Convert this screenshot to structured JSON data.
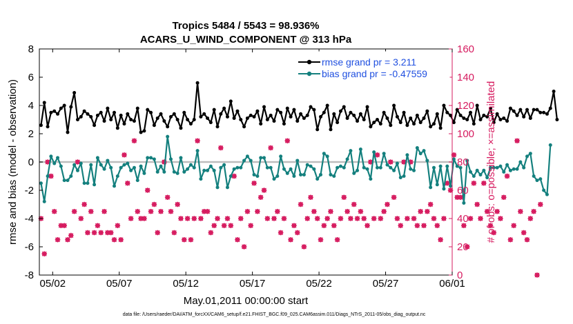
{
  "chart_data": {
    "type": "line",
    "title": "Tropics 5484 / 5543 = 98.936%",
    "subtitle": "ACARS_U_WIND_COMPONENT @ 313 hPa",
    "xlabel": "May.01,2011 00:00:00 start",
    "ylabel_left": "rmse and bias (model - observation)",
    "ylabel_right": "# of obs: o=possible; ×=assimilated",
    "footer": "data file: /Users/raeder/DAI/ATM_forcXX/CAM6_setup/f.e21.FHIST_BGC.f09_025.CAM6assim.011/Diags_NTrS_2011-05/obs_diag_output.nc",
    "x_range": [
      0,
      31
    ],
    "x_ticks": [
      1,
      6,
      11,
      16,
      21,
      26,
      31
    ],
    "x_tick_labels": [
      "05/02",
      "05/07",
      "05/12",
      "05/17",
      "05/22",
      "05/27",
      "06/01"
    ],
    "ylim_left": [
      -8,
      8
    ],
    "yticks_left": [
      "-8",
      "-6",
      "-4",
      "-2",
      "0",
      "2",
      "4",
      "6",
      "8"
    ],
    "ylim_right": [
      0,
      160
    ],
    "yticks_right": [
      "0",
      "20",
      "40",
      "60",
      "80",
      "100",
      "120",
      "140",
      "160"
    ],
    "zero_line": 0,
    "time_step_days": 0.25,
    "series": [
      {
        "name": "rmse grand pr = 3.211",
        "axis": "left",
        "color": "#000000",
        "marker": "dot",
        "values": [
          2.6,
          4.2,
          2.5,
          3.5,
          3.6,
          3.4,
          3.8,
          4.0,
          2.1,
          3.9,
          4.9,
          3.0,
          3.2,
          3.6,
          3.4,
          3.2,
          2.6,
          3.3,
          3.5,
          2.9,
          3.8,
          3.0,
          3.5,
          2.4,
          3.3,
          2.7,
          3.4,
          3.0,
          2.9,
          3.8,
          2.1,
          2.2,
          3.7,
          3.5,
          2.6,
          3.1,
          3.4,
          2.9,
          2.5,
          3.2,
          3.4,
          3.0,
          2.4,
          3.5,
          3.0,
          2.7,
          3.0,
          5.6,
          3.2,
          3.4,
          3.1,
          2.8,
          3.7,
          2.5,
          3.4,
          3.8,
          3.2,
          4.3,
          3.1,
          3.6,
          3.0,
          2.5,
          3.1,
          3.3,
          3.2,
          3.6,
          2.7,
          3.9,
          3.0,
          3.3,
          2.9,
          3.7,
          3.5,
          2.7,
          3.8,
          3.2,
          3.7,
          2.9,
          3.4,
          3.1,
          3.3,
          3.9,
          3.7,
          2.3,
          3.2,
          3.5,
          4.0,
          2.3,
          3.4,
          2.8,
          3.6,
          3.9,
          3.1,
          3.5,
          3.3,
          2.9,
          3.4,
          3.0,
          3.9,
          2.5,
          2.8,
          3.0,
          2.7,
          3.5,
          3.1,
          2.6,
          4.0,
          3.2,
          2.8,
          3.5,
          2.6,
          3.1,
          2.7,
          3.3,
          2.8,
          3.1,
          3.6,
          2.5,
          2.7,
          3.4,
          2.4,
          4.0,
          3.5,
          3.3,
          2.8,
          3.7,
          3.3,
          3.1,
          3.0,
          3.5,
          2.7,
          4.0,
          3.0,
          3.3,
          3.2,
          3.8,
          2.8,
          3.4,
          3.0,
          3.1,
          2.9,
          3.8,
          3.6,
          3.3,
          3.7,
          3.2,
          3.7,
          3.1,
          3.7,
          3.7,
          3.5,
          3.5,
          3.4,
          3.8,
          5.0,
          3.0
        ]
      },
      {
        "name": "bias grand pr = -0.47559",
        "axis": "left",
        "color": "#14807e",
        "marker": "dot",
        "values": [
          -1.5,
          -2.8,
          -1.0,
          0.4,
          -0.1,
          0.3,
          -0.3,
          -1.3,
          -1.3,
          -1.0,
          -0.2,
          -0.6,
          -0.1,
          -1.5,
          -1.5,
          -0.2,
          -1.6,
          0.3,
          -0.2,
          -0.5,
          0.1,
          -0.4,
          -1.7,
          -1.0,
          -0.4,
          -0.2,
          -0.1,
          -0.6,
          -0.4,
          -1.3,
          -0.3,
          -0.8,
          0.3,
          0.3,
          0.2,
          -0.7,
          -0.3,
          -0.7,
          1.8,
          0.2,
          -0.7,
          -0.8,
          0.3,
          -0.7,
          -0.5,
          -0.2,
          -0.4,
          0.8,
          -1.2,
          -0.6,
          -0.6,
          -0.3,
          -0.6,
          -1.8,
          -0.4,
          -0.2,
          -1.8,
          -1.0,
          -0.5,
          -0.4,
          -0.4,
          0.1,
          0.4,
          0.1,
          -0.9,
          -1.0,
          0.3,
          0.3,
          -0.4,
          -0.4,
          -1.2,
          -1.0,
          0.4,
          -0.5,
          -0.8,
          -0.5,
          -1.0,
          0.1,
          -0.9,
          -0.9,
          -0.2,
          -0.3,
          -0.5,
          -1.2,
          -0.9,
          0.6,
          0.4,
          -0.9,
          -1.0,
          -0.4,
          -0.3,
          -0.4,
          0.2,
          0.8,
          -0.8,
          -0.6,
          0.9,
          -0.4,
          -0.5,
          -1.2,
          0.7,
          -0.4,
          -0.4,
          0.6,
          -0.2,
          -0.4,
          -0.6,
          -0.1,
          -1.1,
          -1.0,
          0.5,
          -0.5,
          -0.6,
          1.0,
          0.6,
          0.8,
          0.1,
          -1.8,
          -0.4,
          -1.6,
          -0.3,
          -1.9,
          -0.3,
          -1.7,
          0.2,
          -0.3,
          -0.4,
          -2.9,
          0.1,
          -0.7,
          -1.0,
          -0.6,
          -0.9,
          -0.6,
          -1.1,
          -0.4,
          -0.4,
          -0.4,
          -0.3,
          -0.7,
          -0.2,
          -0.6,
          -0.5,
          -0.5,
          0.0,
          -0.4,
          0.4,
          0.6,
          -1.0,
          -1.3,
          -1.2,
          -2.0,
          -2.3,
          1.2
        ]
      },
      {
        "name": "# obs possible",
        "axis": "right",
        "color": "#d61b5f",
        "marker": "circle",
        "values": [
          40,
          15,
          80,
          70,
          45,
          25,
          35,
          35,
          25,
          28,
          45,
          80,
          40,
          50,
          30,
          45,
          30,
          35,
          30,
          45,
          30,
          30,
          25,
          35,
          25,
          85,
          65,
          40,
          95,
          45,
          40,
          40,
          60,
          45,
          50,
          30,
          45,
          80,
          55,
          45,
          30,
          50,
          40,
          25,
          40,
          25,
          40,
          95,
          40,
          45,
          45,
          30,
          35,
          40,
          90,
          35,
          40,
          35,
          70,
          25,
          40,
          20,
          45,
          35,
          65,
          45,
          55,
          60,
          40,
          90,
          40,
          45,
          30,
          40,
          95,
          25,
          35,
          30,
          50,
          20,
          40,
          55,
          45,
          40,
          25,
          35,
          40,
          45,
          35,
          25,
          40,
          55,
          45,
          40,
          50,
          40,
          45,
          40,
          35,
          80,
          40,
          85,
          40,
          45,
          50,
          80,
          55,
          40,
          35,
          80,
          40,
          80,
          40,
          35,
          45,
          35,
          45,
          50,
          40,
          35,
          25,
          40,
          65,
          60,
          85,
          55,
          55,
          35,
          20,
          40,
          65,
          50,
          40,
          65,
          45,
          35,
          30,
          45,
          40,
          55,
          70,
          25,
          35,
          95,
          45,
          30,
          25,
          40,
          45,
          0,
          50
        ]
      },
      {
        "name": "# obs assimilated",
        "axis": "right",
        "color": "#d61b5f",
        "marker": "star",
        "values": [
          40,
          15,
          80,
          70,
          45,
          25,
          35,
          35,
          25,
          28,
          45,
          80,
          40,
          50,
          30,
          45,
          30,
          35,
          30,
          45,
          30,
          30,
          25,
          35,
          25,
          85,
          65,
          40,
          95,
          45,
          40,
          40,
          60,
          45,
          50,
          30,
          45,
          80,
          55,
          45,
          30,
          50,
          40,
          25,
          40,
          25,
          40,
          95,
          40,
          45,
          45,
          30,
          35,
          40,
          90,
          35,
          40,
          35,
          70,
          25,
          40,
          20,
          45,
          35,
          65,
          45,
          55,
          60,
          40,
          90,
          40,
          45,
          30,
          40,
          95,
          25,
          35,
          30,
          50,
          20,
          40,
          55,
          45,
          40,
          25,
          35,
          40,
          45,
          35,
          25,
          40,
          55,
          45,
          40,
          50,
          40,
          45,
          40,
          35,
          80,
          40,
          85,
          40,
          45,
          50,
          80,
          55,
          40,
          35,
          80,
          40,
          80,
          40,
          35,
          45,
          35,
          45,
          50,
          40,
          35,
          25,
          40,
          65,
          60,
          85,
          55,
          55,
          35,
          20,
          40,
          65,
          50,
          40,
          65,
          45,
          35,
          30,
          45,
          40,
          55,
          70,
          25,
          35,
          95,
          45,
          30,
          25,
          40,
          45,
          0,
          50
        ]
      }
    ],
    "legend": [
      {
        "label": "rmse grand pr = 3.211",
        "color": "#000000"
      },
      {
        "label": "bias grand pr = -0.47559",
        "color": "#14807e"
      }
    ],
    "legend_position": "top-right",
    "colors": {
      "axis_left": "#000000",
      "axis_right": "#d61b5f",
      "zero_line": "#bdbdbd",
      "legend_text": "#1f4fe0"
    }
  }
}
